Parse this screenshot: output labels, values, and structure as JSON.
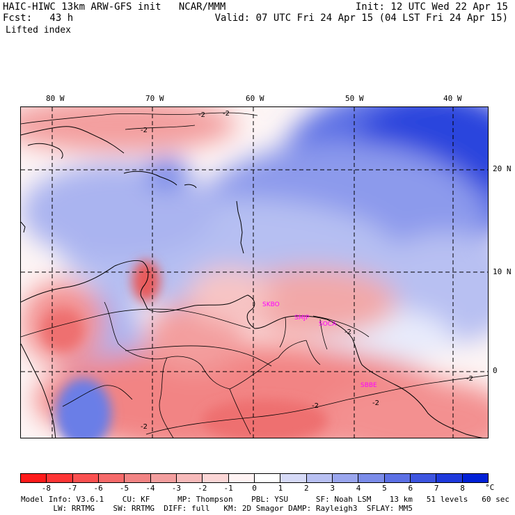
{
  "header": {
    "left_line1": "HAIC-HIWC 13km ARW-GFS init   NCAR/MMM",
    "left_line2": "Fcst:   43 h",
    "right_line1": "Init: 12 UTC Wed 22 Apr 15",
    "right_line2": "Valid: 07 UTC Fri 24 Apr 15 (04 LST Fri 24 Apr 15)",
    "field": "Lifted index"
  },
  "axes": {
    "lon_ticks": [
      "80 W",
      "70 W",
      "60 W",
      "50 W",
      "40 W"
    ],
    "lat_ticks": [
      "20 N",
      "10 N",
      "0"
    ]
  },
  "contour_labels": [
    "-2",
    "-2",
    "-2",
    "-2",
    "-2",
    "-2",
    "-2",
    "-2"
  ],
  "places": [
    "SKBO",
    "SMJP",
    "SOCA",
    "SBBE"
  ],
  "colorbar": {
    "labels": [
      "-8",
      "-7",
      "-6",
      "-5",
      "-4",
      "-3",
      "-2",
      "-1",
      "0",
      "1",
      "2",
      "3",
      "4",
      "5",
      "6",
      "7",
      "8"
    ],
    "unit": "°C",
    "colors": [
      "#ff1a1a",
      "#ff3535",
      "#fa5050",
      "#f66a6a",
      "#f28484",
      "#f39e9e",
      "#f7baba",
      "#fbd6d6",
      "#fff3f3",
      "#ffffff",
      "#d6daf7",
      "#b8c0f2",
      "#9aa6ee",
      "#7b8ce9",
      "#5c70e5",
      "#3d55e0",
      "#1e39dc",
      "#0020d7"
    ]
  },
  "footer": {
    "line1": "Model Info: V3.6.1    CU: KF      MP: Thompson    PBL: YSU      SF: Noah LSM    13 km   51 levels   60 sec",
    "line2": "       LW: RRTMG    SW: RRTMG  DIFF: full   KM: 2D Smagor DAMP: Rayleigh3  SFLAY: MM5"
  }
}
